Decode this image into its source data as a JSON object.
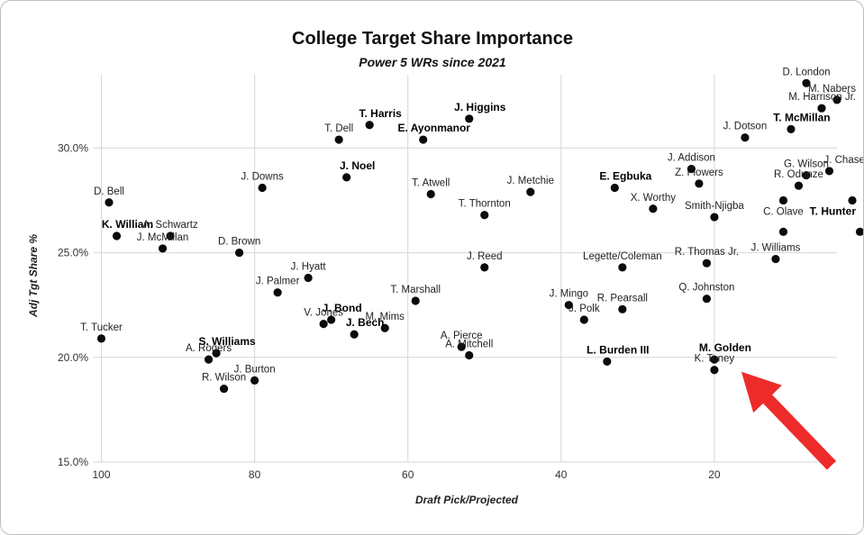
{
  "chart_data": {
    "type": "scatter",
    "title": "College Target Share Importance",
    "subtitle": "Power 5 WRs since 2021",
    "xlabel": "Draft Pick/Projected",
    "ylabel": "Adj Tgt Share %",
    "xlim": [
      101,
      4
    ],
    "ylim": [
      15,
      33.5
    ],
    "x_reversed": true,
    "xticks": [
      100,
      80,
      60,
      40,
      20
    ],
    "yticks": [
      15,
      20,
      25,
      30
    ],
    "ytick_labels": [
      "15.0%",
      "20.0%",
      "25.0%",
      "30.0%"
    ],
    "grid": true,
    "points": [
      {
        "name": "D. London",
        "x": 8,
        "y": 33.1,
        "bold": false,
        "label_pos": "above"
      },
      {
        "name": "M. Nabers",
        "x": 4,
        "y": 32.3,
        "bold": false,
        "label_pos": "above-right"
      },
      {
        "name": "M. Harrison Jr.",
        "x": 6,
        "y": 31.9,
        "bold": false,
        "label_pos": "above-right"
      },
      {
        "name": "T. McMillan",
        "x": 10,
        "y": 30.9,
        "bold": true,
        "label_pos": "above"
      },
      {
        "name": "J. Dotson",
        "x": 16,
        "y": 30.5,
        "bold": false,
        "label_pos": "above"
      },
      {
        "name": "J. Chase",
        "x": 5,
        "y": 28.9,
        "bold": false,
        "label_pos": "above-right"
      },
      {
        "name": "G. Wilson",
        "x": 8,
        "y": 28.7,
        "bold": false,
        "label_pos": "above"
      },
      {
        "name": "J. Addison",
        "x": 23,
        "y": 29.0,
        "bold": false,
        "label_pos": "above"
      },
      {
        "name": "Z. Flowers",
        "x": 22,
        "y": 28.3,
        "bold": false,
        "label_pos": "above"
      },
      {
        "name": "R. Odunze",
        "x": 9,
        "y": 28.2,
        "bold": false,
        "label_pos": "above"
      },
      {
        "name": "T. Hunter",
        "x": 2,
        "y": 27.5,
        "bold": true,
        "label_pos": "below"
      },
      {
        "name": "C. Olave",
        "x": 11,
        "y": 27.5,
        "bold": false,
        "label_pos": "below"
      },
      {
        "name": "Smith-Njigba",
        "x": 20,
        "y": 26.7,
        "bold": false,
        "label_pos": "above"
      },
      {
        "name": "X. Worthy",
        "x": 28,
        "y": 27.1,
        "bold": false,
        "label_pos": "above"
      },
      {
        "name": "E. Egbuka",
        "x": 33,
        "y": 28.1,
        "bold": true,
        "label_pos": "above"
      },
      {
        "name": "J. Williams",
        "x": 12,
        "y": 24.7,
        "bold": false,
        "label_pos": "above"
      },
      {
        "name": "",
        "x": 11,
        "y": 26.0,
        "bold": false,
        "label_pos": "above"
      },
      {
        "name": "",
        "x": 1,
        "y": 26.0,
        "bold": false,
        "label_pos": "above"
      },
      {
        "name": "R. Thomas Jr.",
        "x": 21,
        "y": 24.5,
        "bold": false,
        "label_pos": "above"
      },
      {
        "name": "Q. Johnston",
        "x": 21,
        "y": 22.8,
        "bold": false,
        "label_pos": "above"
      },
      {
        "name": "Legette/Coleman",
        "x": 32,
        "y": 24.3,
        "bold": false,
        "label_pos": "above"
      },
      {
        "name": "R. Pearsall",
        "x": 32,
        "y": 22.3,
        "bold": false,
        "label_pos": "above"
      },
      {
        "name": "J. Mingo",
        "x": 39,
        "y": 22.5,
        "bold": false,
        "label_pos": "above"
      },
      {
        "name": "J. Polk",
        "x": 37,
        "y": 21.8,
        "bold": false,
        "label_pos": "above"
      },
      {
        "name": "L. Burden III",
        "x": 34,
        "y": 19.8,
        "bold": true,
        "label_pos": "above"
      },
      {
        "name": "M. Golden",
        "x": 20,
        "y": 19.9,
        "bold": true,
        "label_pos": "above"
      },
      {
        "name": "K. Toney",
        "x": 20,
        "y": 19.4,
        "bold": false,
        "label_pos": "above"
      },
      {
        "name": "J. Higgins",
        "x": 52,
        "y": 31.4,
        "bold": true,
        "label_pos": "above"
      },
      {
        "name": "E. Ayonmanor",
        "x": 58,
        "y": 30.4,
        "bold": true,
        "label_pos": "above"
      },
      {
        "name": "T. Harris",
        "x": 65,
        "y": 31.1,
        "bold": true,
        "label_pos": "above"
      },
      {
        "name": "T. Dell",
        "x": 69,
        "y": 30.4,
        "bold": false,
        "label_pos": "above"
      },
      {
        "name": "J. Noel",
        "x": 68,
        "y": 28.6,
        "bold": true,
        "label_pos": "above"
      },
      {
        "name": "J. Metchie",
        "x": 44,
        "y": 27.9,
        "bold": false,
        "label_pos": "above"
      },
      {
        "name": "T. Atwell",
        "x": 57,
        "y": 27.8,
        "bold": false,
        "label_pos": "above"
      },
      {
        "name": "T. Thornton",
        "x": 50,
        "y": 26.8,
        "bold": false,
        "label_pos": "above"
      },
      {
        "name": "J. Reed",
        "x": 50,
        "y": 24.3,
        "bold": false,
        "label_pos": "above"
      },
      {
        "name": "T. Marshall",
        "x": 59,
        "y": 22.7,
        "bold": false,
        "label_pos": "above"
      },
      {
        "name": "A. Pierce",
        "x": 53,
        "y": 20.5,
        "bold": false,
        "label_pos": "above"
      },
      {
        "name": "A. Mitchell",
        "x": 52,
        "y": 20.1,
        "bold": false,
        "label_pos": "above"
      },
      {
        "name": "J. Downs",
        "x": 79,
        "y": 28.1,
        "bold": false,
        "label_pos": "above"
      },
      {
        "name": "J. Hyatt",
        "x": 73,
        "y": 23.8,
        "bold": false,
        "label_pos": "above"
      },
      {
        "name": "J. Palmer",
        "x": 77,
        "y": 23.1,
        "bold": false,
        "label_pos": "above"
      },
      {
        "name": "J. Bond",
        "x": 70,
        "y": 21.8,
        "bold": true,
        "label_pos": "above"
      },
      {
        "name": "V. Jones",
        "x": 71,
        "y": 21.6,
        "bold": false,
        "label_pos": "above"
      },
      {
        "name": "J. Bech",
        "x": 67,
        "y": 21.1,
        "bold": true,
        "label_pos": "above"
      },
      {
        "name": "M. Mims",
        "x": 63,
        "y": 21.4,
        "bold": false,
        "label_pos": "above"
      },
      {
        "name": "D. Brown",
        "x": 82,
        "y": 25.0,
        "bold": false,
        "label_pos": "above"
      },
      {
        "name": "D. Bell",
        "x": 99,
        "y": 27.4,
        "bold": false,
        "label_pos": "above"
      },
      {
        "name": "K. William",
        "x": 98,
        "y": 25.8,
        "bold": true,
        "label_pos": "above"
      },
      {
        "name": "A. Schwartz",
        "x": 91,
        "y": 25.8,
        "bold": false,
        "label_pos": "above"
      },
      {
        "name": "J. McMillan",
        "x": 92,
        "y": 25.2,
        "bold": false,
        "label_pos": "above"
      },
      {
        "name": "T. Tucker",
        "x": 100,
        "y": 20.9,
        "bold": false,
        "label_pos": "above"
      },
      {
        "name": "S. Williams",
        "x": 85,
        "y": 20.2,
        "bold": true,
        "label_pos": "above"
      },
      {
        "name": "A. Rogers",
        "x": 86,
        "y": 19.9,
        "bold": false,
        "label_pos": "above"
      },
      {
        "name": "R. Wilson",
        "x": 84,
        "y": 18.5,
        "bold": false,
        "label_pos": "above"
      },
      {
        "name": "J. Burton",
        "x": 80,
        "y": 18.9,
        "bold": false,
        "label_pos": "above"
      }
    ],
    "annotations": [
      {
        "type": "arrow",
        "color": "#ee2b2b",
        "points_to": "K. Toney"
      }
    ]
  },
  "colors": {
    "point": "#0a0a0a",
    "grid": "#d6d6d6",
    "arrow": "#ee2b2b"
  }
}
